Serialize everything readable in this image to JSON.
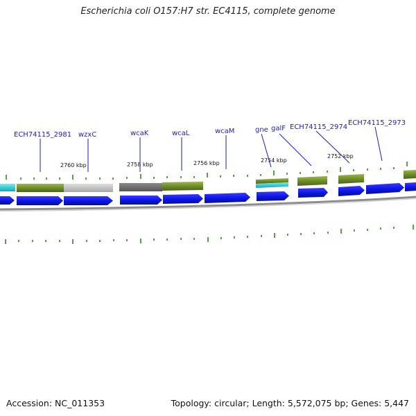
{
  "title": "Escherichia coli O157:H7 str. EC4115, complete genome",
  "footer": {
    "accession": "Accession: NC_011353",
    "summary": "Topology: circular; Length: 5,572,075 bp; Genes: 5,447"
  },
  "colors": {
    "cds": "#0a14e6",
    "cog_green": "#6e8e2a",
    "cog_grey_light": "#bdbdbd",
    "cog_grey_dark": "#6a6a6a",
    "cog_cyan": "#1ec8d2",
    "tick": "#2a8a1a",
    "label": "#1a1ad0",
    "backbone": "#8c8c8c"
  },
  "gene_labels": [
    "ECH74115_2981",
    "wzxC",
    "wcaK",
    "wcaL",
    "wcaM",
    "gne",
    "galF",
    "ECH74115_2974",
    "ECH74115_2973"
  ],
  "kbp_labels": [
    "2760 kbp",
    "2758 kbp",
    "2756 kbp",
    "2754 kbp",
    "2752 kbp"
  ]
}
